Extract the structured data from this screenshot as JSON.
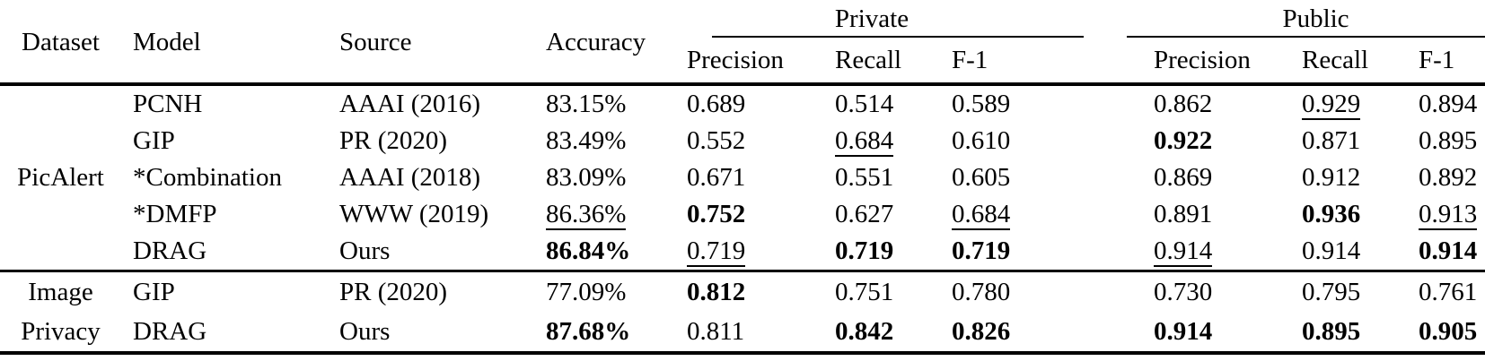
{
  "colors": {
    "text": "#000000",
    "background": "#ffffff"
  },
  "table": {
    "col_headers": {
      "dataset": "Dataset",
      "model": "Model",
      "source": "Source",
      "accuracy": "Accuracy"
    },
    "groups": {
      "private": "Private",
      "public": "Public"
    },
    "sub_headers": {
      "precision": "Precision",
      "recall": "Recall",
      "f1": "F-1"
    },
    "value_columns": [
      "Accuracy",
      "Private Precision",
      "Private Recall",
      "Private F-1",
      "Public Precision",
      "Public Recall",
      "Public F-1"
    ],
    "emphasis_legend": {
      "b": "bold (best)",
      "u": "underline (second best)",
      "n": "normal"
    },
    "sections": [
      {
        "dataset_group": "PicAlert",
        "rows": [
          {
            "dataset": "",
            "model": "PCNH",
            "source": "AAAI (2016)",
            "values": [
              {
                "t": "83.15%",
                "s": "n"
              },
              {
                "t": "0.689",
                "s": "n"
              },
              {
                "t": "0.514",
                "s": "n"
              },
              {
                "t": "0.589",
                "s": "n"
              },
              {
                "t": "0.862",
                "s": "n"
              },
              {
                "t": "0.929",
                "s": "u"
              },
              {
                "t": "0.894",
                "s": "n"
              }
            ]
          },
          {
            "dataset": "",
            "model": "GIP",
            "source": "PR (2020)",
            "values": [
              {
                "t": "83.49%",
                "s": "n"
              },
              {
                "t": "0.552",
                "s": "n"
              },
              {
                "t": "0.684",
                "s": "u"
              },
              {
                "t": "0.610",
                "s": "n"
              },
              {
                "t": "0.922",
                "s": "b"
              },
              {
                "t": "0.871",
                "s": "n"
              },
              {
                "t": "0.895",
                "s": "n"
              }
            ]
          },
          {
            "dataset": "PicAlert",
            "model": "*Combination",
            "source": "AAAI (2018)",
            "values": [
              {
                "t": "83.09%",
                "s": "n"
              },
              {
                "t": "0.671",
                "s": "n"
              },
              {
                "t": "0.551",
                "s": "n"
              },
              {
                "t": "0.605",
                "s": "n"
              },
              {
                "t": "0.869",
                "s": "n"
              },
              {
                "t": "0.912",
                "s": "n"
              },
              {
                "t": "0.892",
                "s": "n"
              }
            ]
          },
          {
            "dataset": "",
            "model": "*DMFP",
            "source": "WWW (2019)",
            "values": [
              {
                "t": "86.36%",
                "s": "u"
              },
              {
                "t": "0.752",
                "s": "b"
              },
              {
                "t": "0.627",
                "s": "n"
              },
              {
                "t": "0.684",
                "s": "u"
              },
              {
                "t": "0.891",
                "s": "n"
              },
              {
                "t": "0.936",
                "s": "b"
              },
              {
                "t": "0.913",
                "s": "u"
              }
            ]
          },
          {
            "dataset": "",
            "model": "DRAG",
            "source": "Ours",
            "values": [
              {
                "t": "86.84%",
                "s": "b"
              },
              {
                "t": "0.719",
                "s": "u"
              },
              {
                "t": "0.719",
                "s": "b"
              },
              {
                "t": "0.719",
                "s": "b"
              },
              {
                "t": "0.914",
                "s": "u"
              },
              {
                "t": "0.914",
                "s": "n"
              },
              {
                "t": "0.914",
                "s": "b"
              }
            ]
          }
        ]
      },
      {
        "dataset_group": "Image Privacy",
        "rows": [
          {
            "dataset": "Image",
            "model": "GIP",
            "source": "PR (2020)",
            "values": [
              {
                "t": "77.09%",
                "s": "n"
              },
              {
                "t": "0.812",
                "s": "b"
              },
              {
                "t": "0.751",
                "s": "n"
              },
              {
                "t": "0.780",
                "s": "n"
              },
              {
                "t": "0.730",
                "s": "n"
              },
              {
                "t": "0.795",
                "s": "n"
              },
              {
                "t": "0.761",
                "s": "n"
              }
            ]
          },
          {
            "dataset": "Privacy",
            "model": "DRAG",
            "source": "Ours",
            "values": [
              {
                "t": "87.68%",
                "s": "b"
              },
              {
                "t": "0.811",
                "s": "n"
              },
              {
                "t": "0.842",
                "s": "b"
              },
              {
                "t": "0.826",
                "s": "b"
              },
              {
                "t": "0.914",
                "s": "b"
              },
              {
                "t": "0.895",
                "s": "b"
              },
              {
                "t": "0.905",
                "s": "b"
              }
            ]
          }
        ]
      }
    ]
  }
}
